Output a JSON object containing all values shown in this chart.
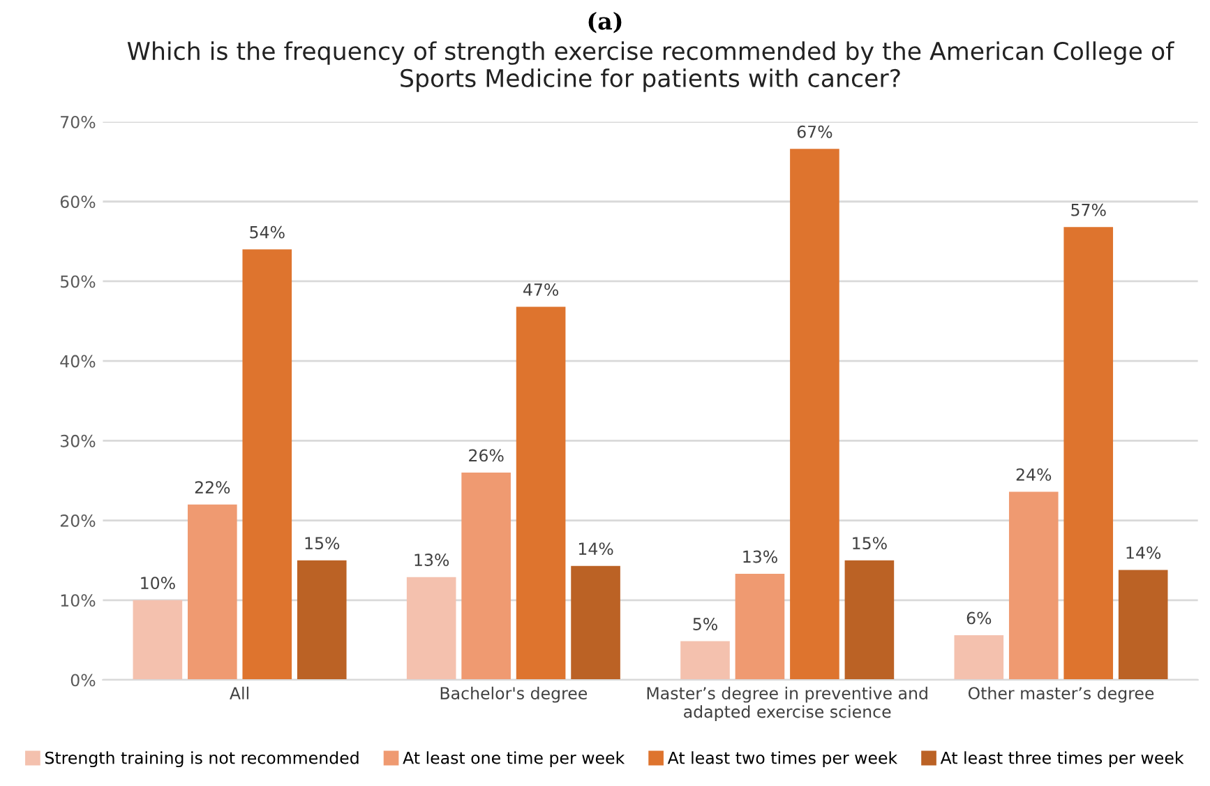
{
  "chart_data": {
    "type": "bar",
    "title": "Which is the frequency of strength exercise recommended by the American College of\nSports Medicine for patients with cancer?",
    "annotations": [
      "(a)"
    ],
    "categories": [
      "All",
      "Bachelor's degree",
      "Master’s degree in preventive and\nadapted exercise science",
      "Other master’s degree"
    ],
    "series": [
      {
        "name": "Strength training is not recommended",
        "color": "#f4c1ae",
        "values": [
          10,
          12.9,
          4.85,
          5.6
        ],
        "value_labels": [
          "10%",
          "13%",
          "5%",
          "6%"
        ]
      },
      {
        "name": "At least one time per week",
        "color": "#ef9a71",
        "values": [
          22,
          26,
          13.3,
          23.6
        ],
        "value_labels": [
          "22%",
          "26%",
          "13%",
          "24%"
        ]
      },
      {
        "name": "At least two times per week",
        "color": "#de742e",
        "values": [
          54,
          46.8,
          66.6,
          56.8
        ],
        "value_labels": [
          "54%",
          "47%",
          "67%",
          "57%"
        ]
      },
      {
        "name": "At least three times per week",
        "color": "#bb6225",
        "values": [
          15,
          14.3,
          15,
          13.8
        ],
        "value_labels": [
          "15%",
          "14%",
          "15%",
          "14%"
        ]
      }
    ],
    "ylim": [
      0,
      70
    ],
    "yticks": [
      {
        "value": 0,
        "label": "0%"
      },
      {
        "value": 10,
        "label": "10%"
      },
      {
        "value": 20,
        "label": "20%"
      },
      {
        "value": 30,
        "label": "30%"
      },
      {
        "value": 40,
        "label": "40%"
      },
      {
        "value": 50,
        "label": "50%"
      },
      {
        "value": 60,
        "label": "60%"
      },
      {
        "value": 70,
        "label": "70%"
      }
    ],
    "grid": "y",
    "legend": "bottom"
  }
}
